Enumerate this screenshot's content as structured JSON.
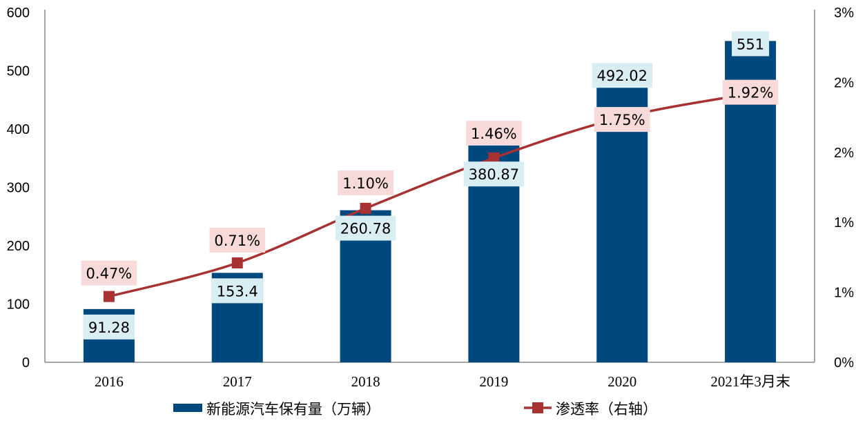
{
  "chart_data": {
    "type": "bar+line",
    "categories": [
      "2016",
      "2017",
      "2018",
      "2019",
      "2020",
      "2021年3月末"
    ],
    "series": [
      {
        "name": "新能源汽车保有量（万辆）",
        "type": "bar",
        "axis": "left",
        "values": [
          91.28,
          153.4,
          260.78,
          380.87,
          492.02,
          551
        ],
        "labels": [
          "91.28",
          "153.4",
          "260.78",
          "380.87",
          "492.02",
          "551"
        ],
        "color": "#00497e",
        "label_bg": "#d9eef3"
      },
      {
        "name": "渗透率（右轴）",
        "type": "line",
        "axis": "right",
        "values": [
          0.47,
          0.71,
          1.1,
          1.46,
          1.75,
          1.92
        ],
        "labels": [
          "0.47%",
          "0.71%",
          "1.10%",
          "1.46%",
          "1.75%",
          "1.92%"
        ],
        "color": "#a83232",
        "label_bg": "#f8dada"
      }
    ],
    "left_axis": {
      "ylim": [
        0,
        600
      ],
      "ticks": [
        0,
        100,
        200,
        300,
        400,
        500,
        600
      ],
      "tick_labels": [
        "0",
        "100",
        "200",
        "300",
        "400",
        "500",
        "600"
      ]
    },
    "right_axis": {
      "ylim": [
        0,
        2.5
      ],
      "ticks": [
        0,
        0.5,
        1,
        1.5,
        2,
        2.5
      ],
      "tick_labels": [
        "0%",
        "1%",
        "1%",
        "2%",
        "2%",
        "3%"
      ]
    },
    "grid": false,
    "legend": "bottom"
  }
}
